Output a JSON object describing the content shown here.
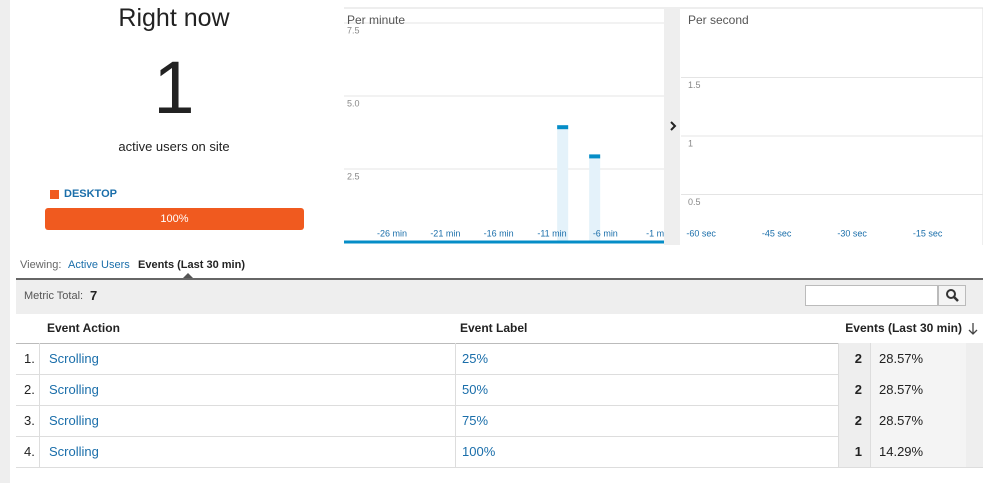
{
  "summary": {
    "title": "Right now",
    "active_users": 1,
    "subtitle": "active users on site",
    "device": "DESKTOP",
    "device_share": "100%"
  },
  "chart_data": [
    {
      "type": "bar",
      "title": "Per minute",
      "x": [
        -10,
        -7
      ],
      "values": [
        4,
        3
      ],
      "color": "#058dc7",
      "xlim": [
        -30.5,
        -0.5
      ],
      "ylim": [
        0,
        7.5
      ],
      "xticks": [
        {
          "value": -26,
          "label": "-26 min"
        },
        {
          "value": -21,
          "label": "-21 min"
        },
        {
          "value": -16,
          "label": "-16 min"
        },
        {
          "value": -11,
          "label": "-11 min"
        },
        {
          "value": -6,
          "label": "-6 min"
        },
        {
          "value": -1,
          "label": "-1 min"
        }
      ],
      "yticks": [
        2.5,
        {
          "value": 5,
          "label": "5.0"
        },
        7.5
      ],
      "grid": true
    },
    {
      "type": "bar",
      "title": "Per second",
      "x": [],
      "values": [],
      "color": "#058dc7",
      "xlim": [
        -64,
        -4
      ],
      "ylim": [
        0,
        2
      ],
      "xticks": [
        {
          "value": -60,
          "label": "-60 sec"
        },
        {
          "value": -45,
          "label": "-45 sec"
        },
        {
          "value": -30,
          "label": "-30 sec"
        },
        {
          "value": -15,
          "label": "-15 sec"
        }
      ],
      "yticks": [
        0.5,
        1,
        1.5
      ],
      "grid": true
    }
  ],
  "viewing": {
    "label": "Viewing:",
    "tabs": [
      "Active Users",
      "Events (Last 30 min)"
    ]
  },
  "table": {
    "metric_total_label": "Metric Total:",
    "metric_total": 7,
    "columns": [
      "Event Action",
      "Event Label",
      "Events (Last 30 min)"
    ],
    "rows": [
      [
        "1.",
        "Scrolling",
        "25%",
        2,
        "28.57%"
      ],
      [
        "2.",
        "Scrolling",
        "50%",
        2,
        "28.57%"
      ],
      [
        "3.",
        "Scrolling",
        "75%",
        2,
        "28.57%"
      ],
      [
        "4.",
        "Scrolling",
        "100%",
        1,
        "14.29%"
      ]
    ]
  }
}
